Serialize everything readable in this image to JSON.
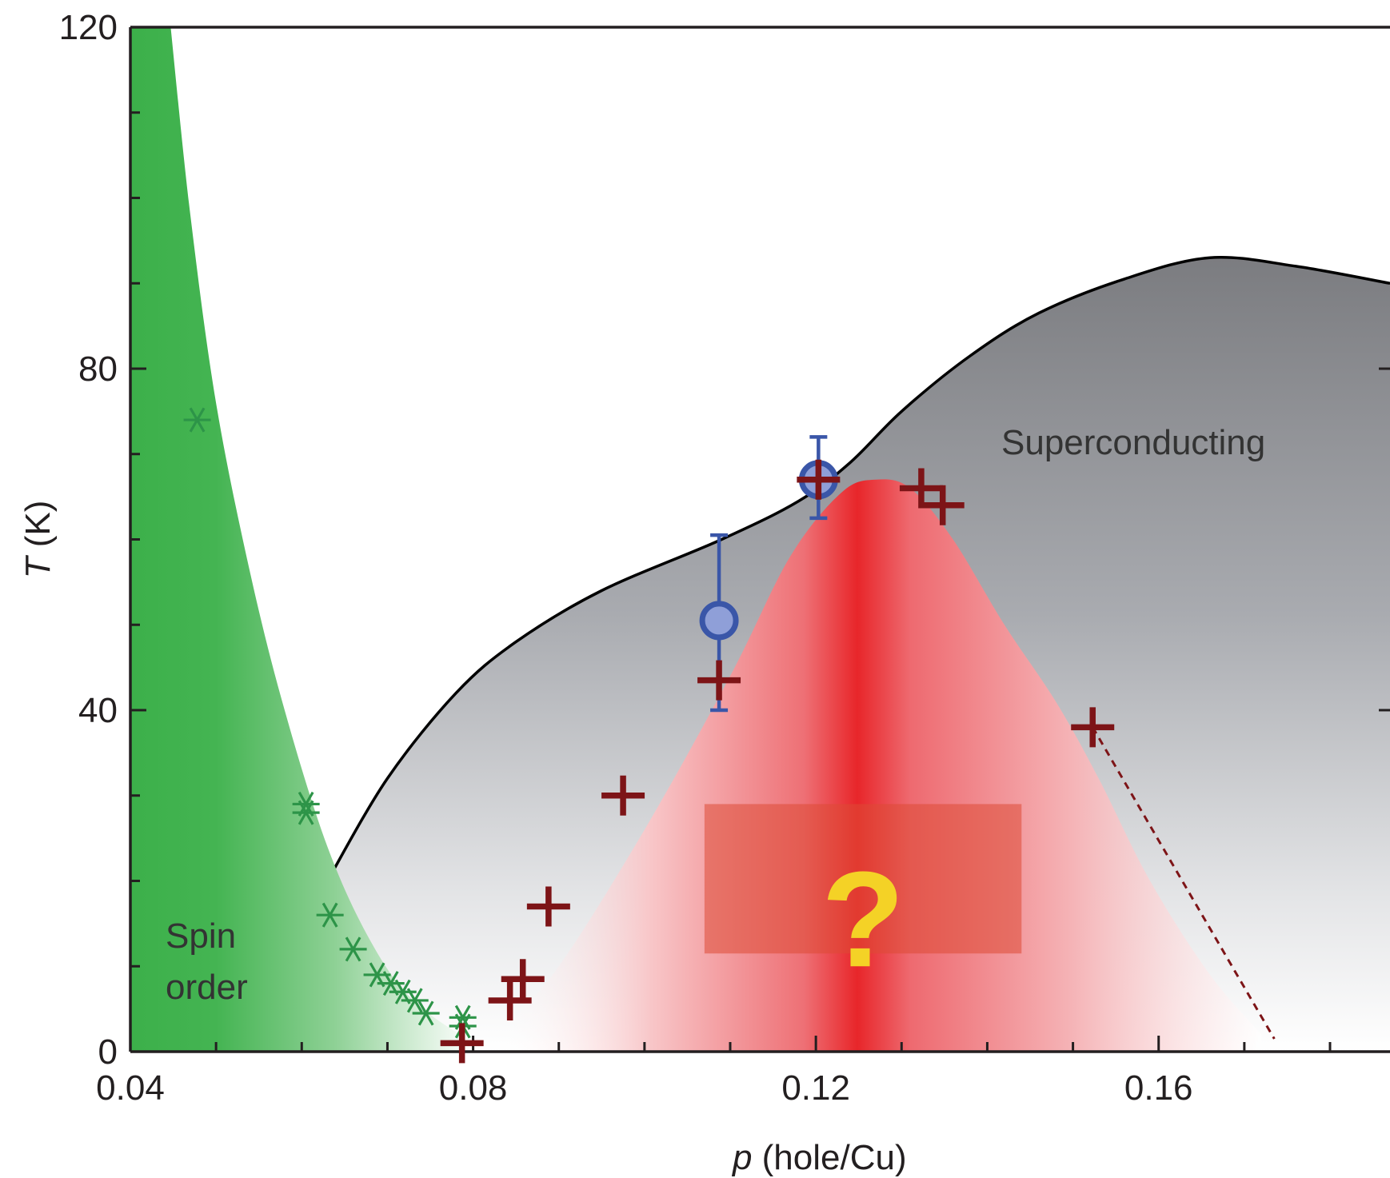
{
  "chart_data": {
    "type": "scatter",
    "xlabel_var": "p",
    "xlabel_rest": " (hole/Cu)",
    "ylabel_var": "T",
    "ylabel_rest": " (K)",
    "xlim": [
      0.04,
      0.187
    ],
    "ylim": [
      0,
      120
    ],
    "xticks": [
      0.04,
      0.08,
      0.12,
      0.16
    ],
    "xtick_labels": [
      "0.04",
      "0.08",
      "0.12",
      "0.16"
    ],
    "yticks": [
      0,
      40,
      80,
      120
    ],
    "ytick_labels": [
      "0",
      "40",
      "80",
      "120"
    ],
    "grid": false,
    "regions": {
      "spin_order_label_line1": "Spin",
      "spin_order_label_line2": "order",
      "superconducting_label": "Superconducting",
      "unknown_label": "?"
    },
    "superconducting_dome": [
      [
        0.063,
        20
      ],
      [
        0.07,
        32
      ],
      [
        0.078,
        42
      ],
      [
        0.085,
        48
      ],
      [
        0.095,
        54
      ],
      [
        0.109,
        60
      ],
      [
        0.118,
        64.5
      ],
      [
        0.124,
        69
      ],
      [
        0.13,
        75
      ],
      [
        0.138,
        81.5
      ],
      [
        0.146,
        86.5
      ],
      [
        0.156,
        90.5
      ],
      [
        0.166,
        93
      ],
      [
        0.176,
        92
      ],
      [
        0.187,
        90
      ]
    ],
    "charge_order_dome": [
      [
        0.083,
        2
      ],
      [
        0.09,
        10
      ],
      [
        0.1,
        26
      ],
      [
        0.11,
        44
      ],
      [
        0.117,
        58
      ],
      [
        0.123,
        65.5
      ],
      [
        0.127,
        67
      ],
      [
        0.131,
        66
      ],
      [
        0.136,
        60
      ],
      [
        0.142,
        50
      ],
      [
        0.148,
        41
      ],
      [
        0.153,
        32
      ],
      [
        0.159,
        20
      ],
      [
        0.166,
        9
      ],
      [
        0.172,
        2
      ]
    ],
    "spin_order_boundary": [
      [
        0.0447,
        120
      ],
      [
        0.047,
        98
      ],
      [
        0.05,
        76
      ],
      [
        0.054,
        56
      ],
      [
        0.058,
        40
      ],
      [
        0.063,
        24
      ],
      [
        0.068,
        13
      ],
      [
        0.073,
        6
      ],
      [
        0.08,
        1
      ]
    ],
    "series": [
      {
        "name": "",
        "marker": "asterisk",
        "color": "#2d9448",
        "x": [
          0.0478,
          0.0605,
          0.0605,
          0.0633,
          0.066,
          0.0688,
          0.0704,
          0.0718,
          0.0732,
          0.0745,
          0.0788,
          0.0788
        ],
        "y": [
          74,
          29,
          28,
          16,
          12,
          9,
          8,
          7,
          6,
          4.5,
          4,
          3
        ]
      },
      {
        "name": "",
        "marker": "plus",
        "color": "#7d1417",
        "x": [
          0.0787,
          0.0843,
          0.0858,
          0.0888,
          0.0975,
          0.1087,
          0.1203,
          0.1323,
          0.1348,
          0.1523
        ],
        "y": [
          1,
          6,
          8.5,
          17,
          30,
          43.5,
          67,
          66,
          64,
          38
        ]
      },
      {
        "name": "",
        "marker": "circle",
        "color": "#3a56a8",
        "fill": "#8f9fd8",
        "x": [
          0.1087,
          0.1203
        ],
        "y": [
          50.5,
          67
        ],
        "err_low": [
          10.5,
          4.5
        ],
        "err_high": [
          10,
          5
        ]
      }
    ],
    "dashed_extension": {
      "color": "#7d1417",
      "x": [
        0.1523,
        0.1735
      ],
      "y": [
        38,
        1.5
      ]
    },
    "colors": {
      "spin_order": "#3cb04a",
      "superconducting_top": "#7b7c80",
      "charge_order_center": "#e8262a",
      "question_mark": "#f4d226"
    }
  }
}
